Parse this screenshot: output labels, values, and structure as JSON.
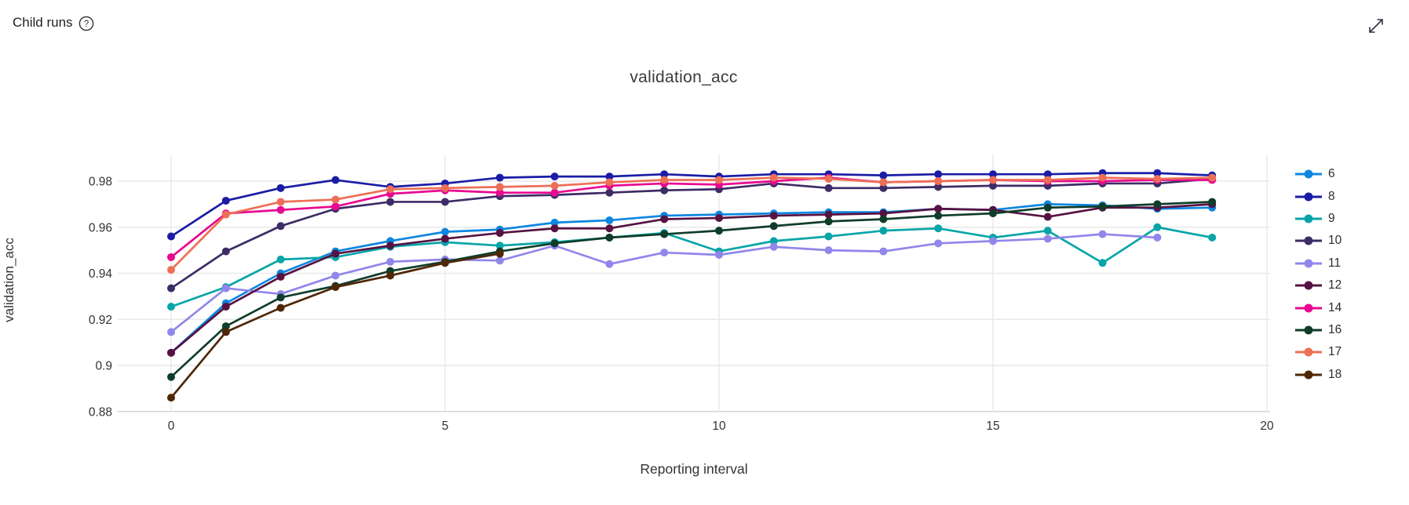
{
  "header": {
    "title": "Child runs",
    "help_icon": "question-mark-circle",
    "expand_icon": "diagonal-expand-arrow"
  },
  "chart_data": {
    "type": "line",
    "title": "validation_acc",
    "xlabel": "Reporting interval",
    "ylabel": "validation_acc",
    "grid": true,
    "legend_position": "right",
    "xlim": [
      -1,
      20.6
    ],
    "ylim": [
      0.878,
      0.986
    ],
    "x_tick_labels": [
      "0",
      "5",
      "10",
      "15",
      "20"
    ],
    "x_tick_values": [
      0,
      5,
      10,
      15,
      20
    ],
    "y_tick_labels": [
      "0.88",
      "0.9",
      "0.92",
      "0.94",
      "0.96",
      "0.98"
    ],
    "y_tick_values": [
      0.88,
      0.9,
      0.92,
      0.94,
      0.96,
      0.98
    ],
    "x": [
      0,
      1,
      2,
      3,
      4,
      5,
      6,
      7,
      8,
      9,
      10,
      11,
      12,
      13,
      14,
      15,
      16,
      17,
      18,
      19
    ],
    "series": [
      {
        "name": "6",
        "color": "#0d86e0",
        "values": [
          0.9055,
          0.927,
          0.94,
          0.9495,
          0.954,
          0.958,
          0.959,
          0.962,
          0.963,
          0.965,
          0.9655,
          0.966,
          0.9665,
          0.9665,
          0.968,
          0.9675,
          0.97,
          0.9695,
          0.968,
          0.9685
        ]
      },
      {
        "name": "8",
        "color": "#1a1ca6",
        "values": [
          0.956,
          0.9715,
          0.977,
          0.9805,
          0.9775,
          0.979,
          0.9815,
          0.982,
          0.982,
          0.983,
          0.982,
          0.983,
          0.983,
          0.9825,
          0.983,
          0.983,
          0.983,
          0.9835,
          0.9835,
          0.9825
        ]
      },
      {
        "name": "9",
        "color": "#08a5a8",
        "values": [
          0.9255,
          0.934,
          0.946,
          0.947,
          0.9515,
          0.9535,
          0.952,
          0.9535,
          0.9555,
          0.9575,
          0.9495,
          0.954,
          0.956,
          0.9585,
          0.9595,
          0.9555,
          0.9585,
          0.9445,
          0.96,
          0.9555
        ]
      },
      {
        "name": "10",
        "color": "#3d2c66",
        "values": [
          0.9335,
          0.9495,
          0.9605,
          0.968,
          0.971,
          0.971,
          0.9735,
          0.974,
          0.975,
          0.976,
          0.9765,
          0.979,
          0.977,
          0.977,
          0.9775,
          0.978,
          0.978,
          0.979,
          0.979,
          0.981
        ]
      },
      {
        "name": "11",
        "color": "#9186ea",
        "values": [
          0.9145,
          0.9335,
          0.931,
          0.939,
          0.945,
          0.946,
          0.9455,
          0.952,
          0.944,
          0.949,
          0.948,
          0.9515,
          0.95,
          0.9495,
          0.953,
          0.954,
          0.955,
          0.957,
          0.9555
        ]
      },
      {
        "name": "12",
        "color": "#571242",
        "values": [
          0.9055,
          0.9255,
          0.9385,
          0.9485,
          0.952,
          0.955,
          0.9575,
          0.9595,
          0.9595,
          0.9635,
          0.964,
          0.965,
          0.9655,
          0.966,
          0.968,
          0.9675,
          0.9645,
          0.9685,
          0.9685,
          0.97
        ]
      },
      {
        "name": "14",
        "color": "#e70990",
        "values": [
          0.947,
          0.966,
          0.9675,
          0.969,
          0.9745,
          0.976,
          0.975,
          0.975,
          0.978,
          0.979,
          0.9785,
          0.98,
          0.9815,
          0.9795,
          0.98,
          0.9805,
          0.98,
          0.98,
          0.9805,
          0.9805
        ]
      },
      {
        "name": "16",
        "color": "#0f3d2a",
        "values": [
          0.895,
          0.917,
          0.9295,
          0.9345,
          0.941,
          0.945,
          0.9495,
          0.953,
          0.9555,
          0.957,
          0.9585,
          0.9605,
          0.9625,
          0.9635,
          0.965,
          0.966,
          0.9685,
          0.969,
          0.97,
          0.971
        ]
      },
      {
        "name": "17",
        "color": "#ed6f56",
        "values": [
          0.9415,
          0.9655,
          0.971,
          0.972,
          0.9765,
          0.977,
          0.9775,
          0.978,
          0.9795,
          0.9805,
          0.9805,
          0.9815,
          0.981,
          0.9795,
          0.98,
          0.9805,
          0.9805,
          0.9815,
          0.981,
          0.9815
        ]
      },
      {
        "name": "18",
        "color": "#4e2706",
        "values": [
          0.886,
          0.9145,
          0.925,
          0.934,
          0.939,
          0.9445,
          0.9485
        ]
      }
    ]
  }
}
